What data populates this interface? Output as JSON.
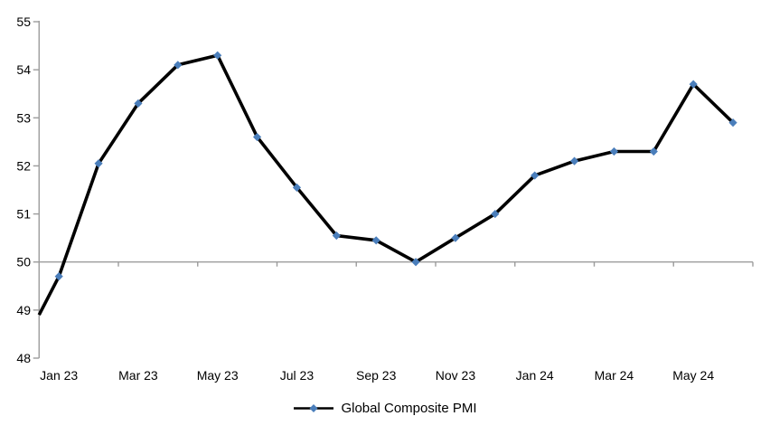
{
  "chart": {
    "legend": {
      "label": "Global Composite PMI"
    },
    "style": {
      "background": "#ffffff",
      "axis_color": "#9c9c9c",
      "series_line_color": "#000000",
      "marker_color": "#4a7ebb",
      "text_color": "#000000"
    },
    "y_axis_tick_labels": [
      "48",
      "49",
      "50",
      "51",
      "52",
      "53",
      "54",
      "55"
    ],
    "x_axis_tick_labels": [
      "Jan 23",
      "Mar 23",
      "May 23",
      "Jul 23",
      "Sep 23",
      "Nov 23",
      "Jan 24",
      "Mar 24",
      "May 24"
    ]
  },
  "chart_data": {
    "type": "line",
    "title": "",
    "categories": [
      "Jan 23",
      "Feb 23",
      "Mar 23",
      "Apr 23",
      "May 23",
      "Jun 23",
      "Jul 23",
      "Aug 23",
      "Sep 23",
      "Oct 23",
      "Nov 23",
      "Dec 23",
      "Jan 24",
      "Feb 24",
      "Mar 24",
      "Apr 24",
      "May 24",
      "Jun 24"
    ],
    "series": [
      {
        "name": "Global Composite PMI",
        "values": [
          49.7,
          52.05,
          53.3,
          54.1,
          54.3,
          52.6,
          51.55,
          50.55,
          50.45,
          50.0,
          50.5,
          51.0,
          51.8,
          52.1,
          52.3,
          52.3,
          53.7,
          52.9
        ]
      }
    ],
    "edge_start_value": 48.9,
    "ylim": [
      48,
      55
    ],
    "y_tick_step": 1,
    "reference_line_y": 50,
    "x_label_every": 2,
    "grid": "off",
    "legend_position": "bottom",
    "marker": "diamond"
  }
}
